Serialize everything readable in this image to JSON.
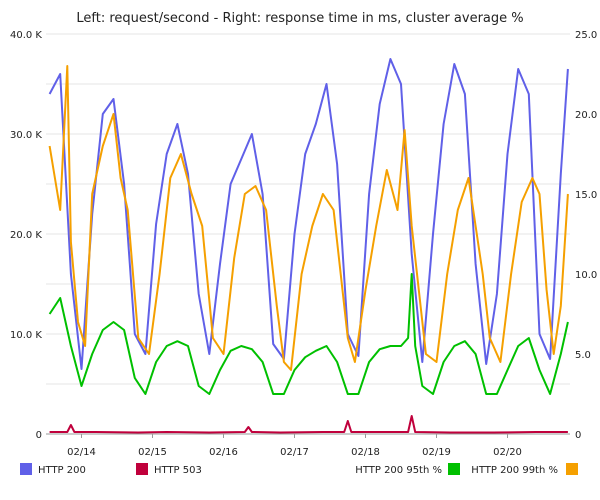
{
  "chart_data": {
    "type": "line",
    "title": "Left: request/second - Right: response time in ms, cluster average %",
    "x_ticks": [
      "02/14",
      "02/15",
      "02/16",
      "02/17",
      "02/18",
      "02/19",
      "02/20"
    ],
    "y_left_ticks": [
      "0",
      "10.0 K",
      "20.0 K",
      "30.0 K",
      "40.0 K"
    ],
    "y_right_ticks": [
      "0",
      "5.0",
      "10.0",
      "15.0",
      "20.0",
      "25.0"
    ],
    "y_left_range": [
      0,
      40000
    ],
    "y_right_range": [
      0,
      25
    ],
    "grid": "horizontal",
    "legend_placement": "bottom",
    "colors": {
      "http200": "#6060e8",
      "http503": "#c0003c",
      "p95": "#00c000",
      "p99": "#f5a000"
    },
    "legend": {
      "http200": "HTTP 200",
      "http503": "HTTP 503",
      "p95": "HTTP 200 95th %",
      "p99": "HTTP 200 99th %"
    },
    "series": [
      {
        "key": "http200",
        "name": "HTTP 200",
        "axis": "left",
        "x": [
          13.55,
          13.7,
          13.85,
          14.0,
          14.15,
          14.3,
          14.45,
          14.6,
          14.75,
          14.9,
          15.05,
          15.2,
          15.35,
          15.5,
          15.65,
          15.8,
          15.95,
          16.1,
          16.25,
          16.4,
          16.55,
          16.7,
          16.85,
          17.0,
          17.15,
          17.3,
          17.45,
          17.6,
          17.75,
          17.9,
          18.05,
          18.2,
          18.35,
          18.5,
          18.65,
          18.8,
          18.95,
          19.1,
          19.25,
          19.4,
          19.55,
          19.7,
          19.85,
          20.0,
          20.15,
          20.3,
          20.45,
          20.6,
          20.75,
          20.85
        ],
        "values": [
          34000,
          36000,
          16000,
          6500,
          22000,
          32000,
          33500,
          25000,
          10000,
          8000,
          21000,
          28000,
          31000,
          26000,
          14000,
          8000,
          17000,
          25000,
          27500,
          30000,
          24000,
          9000,
          7500,
          20000,
          28000,
          31000,
          35000,
          27000,
          10000,
          7800,
          24000,
          33000,
          37500,
          35000,
          18000,
          7200,
          20000,
          31000,
          37000,
          34000,
          17000,
          7000,
          14000,
          28000,
          36500,
          34000,
          10000,
          7500,
          26000,
          36500
        ]
      },
      {
        "key": "http503",
        "name": "HTTP 503",
        "axis": "left",
        "x": [
          13.55,
          13.8,
          13.85,
          13.9,
          14.2,
          14.8,
          15.2,
          15.8,
          16.3,
          16.35,
          16.4,
          16.8,
          17.4,
          17.7,
          17.75,
          17.8,
          18.2,
          18.6,
          18.65,
          18.7,
          19.2,
          19.8,
          20.4,
          20.85
        ],
        "values": [
          200,
          200,
          900,
          200,
          200,
          150,
          200,
          150,
          200,
          700,
          200,
          150,
          200,
          200,
          1300,
          200,
          200,
          200,
          1800,
          200,
          150,
          150,
          200,
          200
        ]
      },
      {
        "key": "p95",
        "name": "HTTP 200 95th %",
        "axis": "right",
        "x": [
          13.55,
          13.7,
          13.85,
          14.0,
          14.15,
          14.3,
          14.45,
          14.6,
          14.75,
          14.9,
          15.05,
          15.2,
          15.35,
          15.5,
          15.65,
          15.8,
          15.95,
          16.1,
          16.25,
          16.4,
          16.55,
          16.7,
          16.85,
          17.0,
          17.15,
          17.3,
          17.45,
          17.6,
          17.75,
          17.9,
          18.05,
          18.2,
          18.35,
          18.5,
          18.6,
          18.65,
          18.7,
          18.8,
          18.95,
          19.1,
          19.25,
          19.4,
          19.55,
          19.7,
          19.85,
          20.0,
          20.15,
          20.3,
          20.45,
          20.6,
          20.75,
          20.85
        ],
        "values": [
          7.5,
          8.5,
          5.5,
          3.0,
          5.0,
          6.5,
          7.0,
          6.5,
          3.5,
          2.5,
          4.5,
          5.5,
          5.8,
          5.5,
          3.0,
          2.5,
          4.0,
          5.2,
          5.5,
          5.3,
          4.5,
          2.5,
          2.5,
          4.0,
          4.8,
          5.2,
          5.5,
          4.5,
          2.5,
          2.5,
          4.5,
          5.3,
          5.5,
          5.5,
          6.0,
          10.0,
          5.5,
          3.0,
          2.5,
          4.5,
          5.5,
          5.8,
          5.0,
          2.5,
          2.5,
          4.0,
          5.5,
          6.0,
          4.0,
          2.5,
          5.0,
          7.0
        ]
      },
      {
        "key": "p99",
        "name": "HTTP 200 99th %",
        "axis": "right",
        "x": [
          13.55,
          13.7,
          13.8,
          13.85,
          13.95,
          14.05,
          14.15,
          14.3,
          14.45,
          14.55,
          14.65,
          14.8,
          14.95,
          15.1,
          15.25,
          15.4,
          15.55,
          15.7,
          15.85,
          16.0,
          16.15,
          16.3,
          16.45,
          16.6,
          16.75,
          16.85,
          16.95,
          17.1,
          17.25,
          17.4,
          17.55,
          17.65,
          17.75,
          17.85,
          18.0,
          18.15,
          18.3,
          18.45,
          18.55,
          18.65,
          18.75,
          18.85,
          19.0,
          19.15,
          19.3,
          19.45,
          19.55,
          19.65,
          19.75,
          19.9,
          20.05,
          20.2,
          20.35,
          20.45,
          20.55,
          20.65,
          20.75,
          20.85
        ],
        "values": [
          18.0,
          14.0,
          23.0,
          12.0,
          7.0,
          5.5,
          15.0,
          18.0,
          20.0,
          16.0,
          14.0,
          6.0,
          5.0,
          10.0,
          16.0,
          17.5,
          15.0,
          13.0,
          6.0,
          5.0,
          11.0,
          15.0,
          15.5,
          14.0,
          8.0,
          4.5,
          4.0,
          10.0,
          13.0,
          15.0,
          14.0,
          10.0,
          6.0,
          4.5,
          9.0,
          13.0,
          16.5,
          14.0,
          19.0,
          13.0,
          9.0,
          5.0,
          4.5,
          10.0,
          14.0,
          16.0,
          13.0,
          10.0,
          6.0,
          4.5,
          10.0,
          14.5,
          16.0,
          15.0,
          9.0,
          5.0,
          8.0,
          15.0
        ]
      }
    ]
  }
}
